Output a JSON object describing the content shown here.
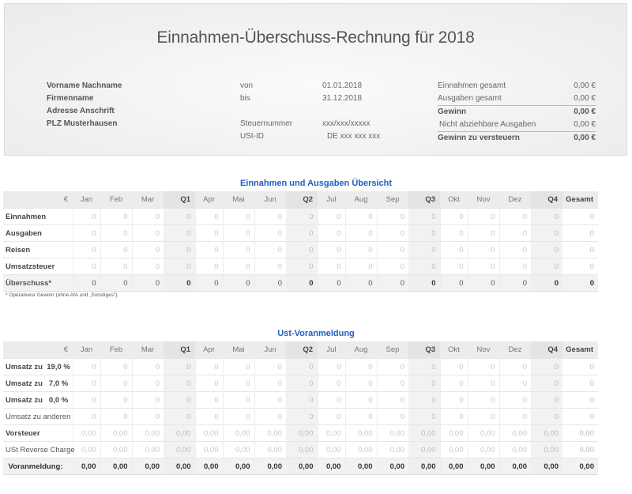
{
  "header": {
    "title": "Einnahmen-Überschuss-Rechnung für 2018",
    "contact": [
      "Vorname Nachname",
      "Firmenname",
      "Adresse Anschrift",
      "PLZ Musterhausen"
    ],
    "period": {
      "from_label": "von",
      "from_value": "01.01.2018",
      "to_label": "bis",
      "to_value": "31.12.2018"
    },
    "tax": {
      "steuernummer_label": "Steuernummer",
      "steuernummer_value": "xxx/xxx/xxxxx",
      "ustid_label": "USt-ID",
      "ustid_value": "DE xxx xxx xxx"
    },
    "summary": [
      {
        "label": "Einnahmen gesamt",
        "value": "0,00 €"
      },
      {
        "label": "Ausgaben gesamt",
        "value": "0,00 €"
      },
      {
        "label": "Gewinn",
        "value": "0,00 €"
      },
      {
        "label": "Nicht abziehbare Ausgaben",
        "value": "0,00 €"
      },
      {
        "label": "Gewinn zu versteuern",
        "value": "0,00 €"
      }
    ]
  },
  "columns": {
    "currency": "€",
    "months": [
      "Jan",
      "Feb",
      "Mar",
      "Apr",
      "Mai",
      "Jun",
      "Jul",
      "Aug",
      "Sep",
      "Okt",
      "Nov",
      "Dez"
    ],
    "quarters": [
      "Q1",
      "Q2",
      "Q3",
      "Q4"
    ],
    "total": "Gesamt"
  },
  "overview": {
    "title": "Einnahmen und Ausgaben Übersicht",
    "rows": [
      {
        "label": "Einnahmen",
        "months": [
          "0",
          "0",
          "0",
          "0",
          "0",
          "0",
          "0",
          "0",
          "0",
          "0",
          "0",
          "0"
        ],
        "quarters": [
          "0",
          "0",
          "0",
          "0"
        ],
        "total": "0"
      },
      {
        "label": "Ausgaben",
        "months": [
          "0",
          "0",
          "0",
          "0",
          "0",
          "0",
          "0",
          "0",
          "0",
          "0",
          "0",
          "0"
        ],
        "quarters": [
          "0",
          "0",
          "0",
          "0"
        ],
        "total": "0"
      },
      {
        "label": "Reisen",
        "months": [
          "0",
          "0",
          "0",
          "0",
          "0",
          "0",
          "0",
          "0",
          "0",
          "0",
          "0",
          "0"
        ],
        "quarters": [
          "0",
          "0",
          "0",
          "0"
        ],
        "total": "0"
      },
      {
        "label": "Umsatzsteuer",
        "months": [
          "0",
          "0",
          "0",
          "0",
          "0",
          "0",
          "0",
          "0",
          "0",
          "0",
          "0",
          "0"
        ],
        "quarters": [
          "0",
          "0",
          "0",
          "0"
        ],
        "total": "0"
      },
      {
        "label": "Überschuss*",
        "months": [
          "0",
          "0",
          "0",
          "0",
          "0",
          "0",
          "0",
          "0",
          "0",
          "0",
          "0",
          "0"
        ],
        "quarters": [
          "0",
          "0",
          "0",
          "0"
        ],
        "total": "0"
      }
    ],
    "footnote": "* Operativesr Gewinn (ohne AfA und „Sonstiges\")"
  },
  "ust": {
    "title": "Ust-Voranmeldung",
    "rows": [
      {
        "label": "Umsatz zu  19,0 %",
        "months": [
          "0",
          "0",
          "0",
          "0",
          "0",
          "0",
          "0",
          "0",
          "0",
          "0",
          "0",
          "0"
        ],
        "quarters": [
          "0",
          "0",
          "0",
          "0"
        ],
        "total": "0"
      },
      {
        "label": "Umsatz zu   7,0 %",
        "months": [
          "0",
          "0",
          "0",
          "0",
          "0",
          "0",
          "0",
          "0",
          "0",
          "0",
          "0",
          "0"
        ],
        "quarters": [
          "0",
          "0",
          "0",
          "0"
        ],
        "total": "0"
      },
      {
        "label": "Umsatz zu   0,0 %",
        "months": [
          "0",
          "0",
          "0",
          "0",
          "0",
          "0",
          "0",
          "0",
          "0",
          "0",
          "0",
          "0"
        ],
        "quarters": [
          "0",
          "0",
          "0",
          "0"
        ],
        "total": "0"
      },
      {
        "label": "Umsatz zu anderen",
        "months": [
          "0",
          "0",
          "0",
          "0",
          "0",
          "0",
          "0",
          "0",
          "0",
          "0",
          "0",
          "0"
        ],
        "quarters": [
          "0",
          "0",
          "0",
          "0"
        ],
        "total": "0"
      },
      {
        "label": "Vorsteuer",
        "months": [
          "0,00",
          "0,00",
          "0,00",
          "0,00",
          "0,00",
          "0,00",
          "0,00",
          "0,00",
          "0,00",
          "0,00",
          "0,00",
          "0,00"
        ],
        "quarters": [
          "0,00",
          "0,00",
          "0,00",
          "0,00"
        ],
        "total": "0,00"
      },
      {
        "label": "USt Reverse Charge",
        "months": [
          "0,00",
          "0,00",
          "0,00",
          "0,00",
          "0,00",
          "0,00",
          "0,00",
          "0,00",
          "0,00",
          "0,00",
          "0,00",
          "0,00"
        ],
        "quarters": [
          "0,00",
          "0,00",
          "0,00",
          "0,00"
        ],
        "total": "0,00"
      },
      {
        "label": "Voranmeldung:",
        "months": [
          "0,00",
          "0,00",
          "0,00",
          "0,00",
          "0,00",
          "0,00",
          "0,00",
          "0,00",
          "0,00",
          "0,00",
          "0,00",
          "0,00"
        ],
        "quarters": [
          "0,00",
          "0,00",
          "0,00",
          "0,00"
        ],
        "total": "0,00"
      }
    ]
  }
}
